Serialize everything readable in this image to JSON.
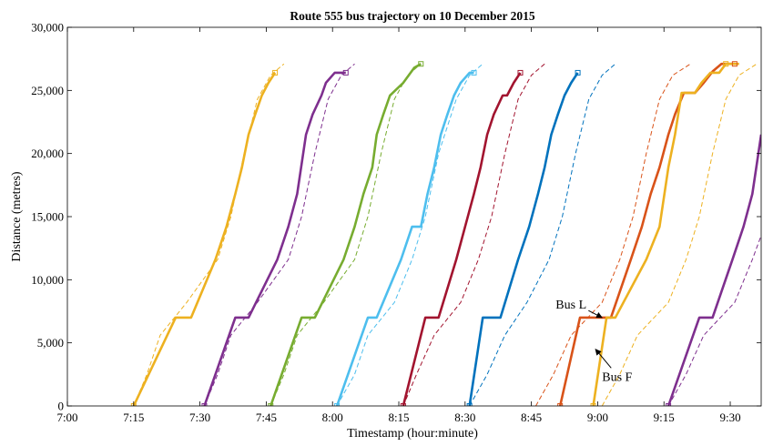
{
  "chart_data": {
    "type": "line",
    "title": "Route 555 bus trajectory on 10 December 2015",
    "xlabel": "Timestamp (hour:minute)",
    "ylabel": "Distance (metres)",
    "x_unit": "minutes after 7:00",
    "xlim": [
      0,
      157
    ],
    "ylim": [
      0,
      30000
    ],
    "x_ticks": [
      0,
      15,
      30,
      45,
      60,
      75,
      90,
      105,
      120,
      135,
      150
    ],
    "x_tick_labels": [
      "7:00",
      "7:15",
      "7:30",
      "7:45",
      "8:00",
      "8:15",
      "8:30",
      "8:45",
      "9:00",
      "9:15",
      "9:30"
    ],
    "y_ticks": [
      0,
      5000,
      10000,
      15000,
      20000,
      25000,
      30000
    ],
    "y_tick_labels": [
      "0",
      "5,000",
      "10,000",
      "15,000",
      "20,000",
      "25,000",
      "30,000"
    ],
    "grid": false,
    "legend": "none",
    "series": [
      {
        "color": "#edb120",
        "actual": [
          [
            15,
            0
          ],
          [
            15,
            0
          ],
          [
            24.5,
            7000
          ],
          [
            28,
            7000
          ],
          [
            33.5,
            11600
          ],
          [
            36,
            14200
          ],
          [
            38,
            16800
          ],
          [
            39.5,
            18900
          ],
          [
            41,
            21500
          ],
          [
            42.5,
            23100
          ],
          [
            44,
            24600
          ],
          [
            45.5,
            25600
          ],
          [
            47,
            26400
          ]
        ],
        "scheduled": [
          [
            15,
            0
          ],
          [
            18,
            2500
          ],
          [
            21,
            5600
          ],
          [
            27,
            8200
          ],
          [
            34,
            11600
          ],
          [
            37,
            15000
          ],
          [
            40,
            20000
          ],
          [
            43,
            24300
          ],
          [
            46,
            26200
          ],
          [
            49,
            27100
          ]
        ]
      },
      {
        "color": "#7e2f8e",
        "actual": [
          [
            31,
            0
          ],
          [
            38,
            7000
          ],
          [
            41,
            7000
          ],
          [
            47.5,
            11600
          ],
          [
            50,
            14200
          ],
          [
            52,
            16800
          ],
          [
            54,
            21500
          ],
          [
            55.5,
            23100
          ],
          [
            57.5,
            24600
          ],
          [
            58.5,
            25600
          ],
          [
            60.5,
            26400
          ],
          [
            63,
            26400
          ]
        ],
        "scheduled": [
          [
            31,
            0
          ],
          [
            34,
            2500
          ],
          [
            37,
            5600
          ],
          [
            43,
            8200
          ],
          [
            50,
            11600
          ],
          [
            53,
            15000
          ],
          [
            56,
            20000
          ],
          [
            59,
            24300
          ],
          [
            62,
            26200
          ],
          [
            65,
            27100
          ]
        ]
      },
      {
        "color": "#77ac30",
        "actual": [
          [
            46,
            0
          ],
          [
            53,
            7000
          ],
          [
            56,
            7000
          ],
          [
            62.5,
            11600
          ],
          [
            65,
            14200
          ],
          [
            67,
            16800
          ],
          [
            69,
            18900
          ],
          [
            70,
            21500
          ],
          [
            71.5,
            23100
          ],
          [
            73,
            24600
          ],
          [
            74.5,
            25100
          ],
          [
            76,
            25600
          ],
          [
            78.5,
            26800
          ],
          [
            80,
            27100
          ]
        ],
        "scheduled": [
          [
            46,
            0
          ],
          [
            49,
            2500
          ],
          [
            52,
            5600
          ],
          [
            58,
            8200
          ],
          [
            65,
            11600
          ],
          [
            68,
            15000
          ],
          [
            71,
            20000
          ],
          [
            74,
            24300
          ],
          [
            77,
            26200
          ],
          [
            80,
            27100
          ]
        ]
      },
      {
        "color": "#4dbeee",
        "actual": [
          [
            61,
            0
          ],
          [
            68,
            7000
          ],
          [
            70,
            7000
          ],
          [
            75.5,
            11600
          ],
          [
            78,
            14200
          ],
          [
            80,
            14200
          ],
          [
            81.5,
            16800
          ],
          [
            83,
            18900
          ],
          [
            84.5,
            21500
          ],
          [
            86,
            23100
          ],
          [
            87.5,
            24600
          ],
          [
            89,
            25600
          ],
          [
            91,
            26400
          ],
          [
            92,
            26400
          ]
        ],
        "scheduled": [
          [
            61,
            0
          ],
          [
            65,
            2500
          ],
          [
            68,
            5600
          ],
          [
            74,
            8200
          ],
          [
            78,
            11600
          ],
          [
            81,
            15000
          ],
          [
            84,
            20000
          ],
          [
            88,
            24300
          ],
          [
            91,
            26200
          ],
          [
            94,
            27100
          ]
        ]
      },
      {
        "color": "#a2142f",
        "actual": [
          [
            76,
            0
          ],
          [
            81,
            7000
          ],
          [
            84,
            7000
          ],
          [
            88,
            11600
          ],
          [
            90,
            14200
          ],
          [
            92,
            16800
          ],
          [
            93.5,
            18900
          ],
          [
            95,
            21500
          ],
          [
            96.5,
            23100
          ],
          [
            98.5,
            24600
          ],
          [
            99.5,
            24600
          ],
          [
            101,
            25600
          ],
          [
            102.5,
            26400
          ]
        ],
        "scheduled": [
          [
            76,
            0
          ],
          [
            79,
            2500
          ],
          [
            83,
            5600
          ],
          [
            89,
            8200
          ],
          [
            93,
            11600
          ],
          [
            96,
            15000
          ],
          [
            99,
            20000
          ],
          [
            102,
            24300
          ],
          [
            105,
            26200
          ],
          [
            108,
            27100
          ]
        ]
      },
      {
        "color": "#0072bd",
        "actual": [
          [
            91,
            0
          ],
          [
            94,
            7000
          ],
          [
            98,
            7000
          ],
          [
            102,
            11600
          ],
          [
            104.5,
            14200
          ],
          [
            106.5,
            16800
          ],
          [
            108,
            18900
          ],
          [
            109.5,
            21500
          ],
          [
            111,
            23100
          ],
          [
            112.5,
            24600
          ],
          [
            114,
            25600
          ],
          [
            115.5,
            26400
          ]
        ],
        "scheduled": [
          [
            91,
            0
          ],
          [
            95,
            2500
          ],
          [
            99,
            5600
          ],
          [
            104,
            8200
          ],
          [
            109,
            11600
          ],
          [
            112,
            15000
          ],
          [
            115,
            20000
          ],
          [
            118,
            24300
          ],
          [
            121,
            26200
          ],
          [
            124,
            27100
          ]
        ]
      },
      {
        "color": "#d95319",
        "actual": [
          [
            111.5,
            0
          ],
          [
            116,
            7000
          ],
          [
            123,
            7000
          ],
          [
            127.5,
            11600
          ],
          [
            130,
            14200
          ],
          [
            132,
            16800
          ],
          [
            134,
            18900
          ],
          [
            136,
            21500
          ],
          [
            137.5,
            23100
          ],
          [
            139.5,
            24800
          ],
          [
            142,
            24800
          ],
          [
            144,
            25600
          ],
          [
            146,
            26500
          ],
          [
            148,
            27100
          ],
          [
            151,
            27100
          ]
        ],
        "scheduled": [
          [
            106,
            0
          ],
          [
            110,
            2500
          ],
          [
            114,
            5600
          ],
          [
            121,
            8200
          ],
          [
            125,
            11600
          ],
          [
            128,
            15000
          ],
          [
            131,
            20000
          ],
          [
            134,
            24300
          ],
          [
            137,
            26200
          ],
          [
            141,
            27100
          ]
        ]
      },
      {
        "color": "#edb120",
        "actual": [
          [
            119,
            0
          ],
          [
            122,
            7000
          ],
          [
            124,
            7000
          ],
          [
            131,
            11600
          ],
          [
            134,
            14200
          ],
          [
            136,
            18900
          ],
          [
            137.5,
            21500
          ],
          [
            139,
            24800
          ],
          [
            142,
            24800
          ],
          [
            143.5,
            25600
          ],
          [
            145.5,
            26400
          ],
          [
            147.5,
            26400
          ],
          [
            149,
            27100
          ],
          [
            152,
            27100
          ]
        ],
        "scheduled": [
          [
            121,
            0
          ],
          [
            125,
            2500
          ],
          [
            129,
            5600
          ],
          [
            136,
            8200
          ],
          [
            140,
            11600
          ],
          [
            143,
            15000
          ],
          [
            146,
            20000
          ],
          [
            149,
            24300
          ],
          [
            152,
            26200
          ],
          [
            156,
            27100
          ]
        ]
      },
      {
        "color": "#7e2f8e",
        "actual": [
          [
            136,
            0
          ],
          [
            143,
            7000
          ],
          [
            146,
            7000
          ],
          [
            150.5,
            11600
          ],
          [
            153,
            14200
          ],
          [
            155,
            16800
          ],
          [
            157,
            21500
          ]
        ],
        "scheduled": [
          [
            136,
            0
          ],
          [
            140,
            2500
          ],
          [
            144,
            5600
          ],
          [
            151,
            8200
          ],
          [
            155,
            11600
          ],
          [
            157,
            13500
          ]
        ]
      }
    ],
    "markers": [
      {
        "x": 15,
        "y": 0,
        "color": "#edb120"
      },
      {
        "x": 47,
        "y": 26400,
        "color": "#edb120"
      },
      {
        "x": 31,
        "y": 0,
        "color": "#7e2f8e"
      },
      {
        "x": 63,
        "y": 26400,
        "color": "#7e2f8e"
      },
      {
        "x": 46,
        "y": 0,
        "color": "#77ac30"
      },
      {
        "x": 80,
        "y": 27100,
        "color": "#77ac30"
      },
      {
        "x": 61,
        "y": 0,
        "color": "#4dbeee"
      },
      {
        "x": 92,
        "y": 26400,
        "color": "#4dbeee"
      },
      {
        "x": 76,
        "y": 0,
        "color": "#a2142f"
      },
      {
        "x": 102.5,
        "y": 26400,
        "color": "#a2142f"
      },
      {
        "x": 91,
        "y": 0,
        "color": "#0072bd"
      },
      {
        "x": 115.5,
        "y": 26400,
        "color": "#0072bd"
      },
      {
        "x": 111.5,
        "y": 0,
        "color": "#d95319"
      },
      {
        "x": 151,
        "y": 27100,
        "color": "#d95319"
      },
      {
        "x": 119,
        "y": 0,
        "color": "#edb120"
      },
      {
        "x": 149,
        "y": 27100,
        "color": "#edb120"
      },
      {
        "x": 136,
        "y": 0,
        "color": "#7e2f8e"
      }
    ],
    "annotations": [
      {
        "label": "Bus L",
        "text_at": [
          110.5,
          7700
        ],
        "arrow_to": [
          121,
          7000
        ]
      },
      {
        "label": "Bus F",
        "text_at": [
          121,
          2000
        ],
        "arrow_to": [
          119.5,
          4500
        ]
      }
    ]
  }
}
